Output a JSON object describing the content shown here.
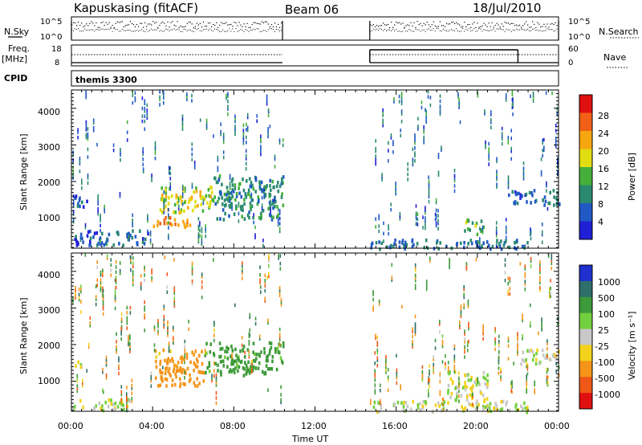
{
  "header": {
    "station": "Kapuskasing (fitACF)",
    "beam": "Beam 06",
    "date": "18/Jul/2010"
  },
  "panels": {
    "nsky": {
      "left_label": "N.Sky",
      "right_label": "N.Search",
      "left_ticks": [
        "10^5",
        "10^0"
      ],
      "right_ticks": [
        "10^5",
        "10^0"
      ]
    },
    "freq": {
      "left_label_1": "Freq.",
      "left_label_2": "[MHz]",
      "right_label": "Nave",
      "left_ticks": [
        "18",
        "8"
      ],
      "right_ticks": [
        "60",
        "0"
      ]
    },
    "cpid": {
      "label": "CPID",
      "value": "themis 3300"
    }
  },
  "axes": {
    "xlabel": "Time UT",
    "x_ticks": [
      "00:00",
      "04:00",
      "08:00",
      "12:00",
      "16:00",
      "20:00",
      "00:00"
    ],
    "ylabel": "Slant Range [km]",
    "y_ticks": [
      "1000",
      "2000",
      "3000",
      "4000"
    ]
  },
  "colorbars": {
    "power": {
      "label": "Power [dB]",
      "ticks": [
        "4",
        "8",
        "12",
        "16",
        "20",
        "24",
        "28"
      ],
      "colors": [
        "#1f1fd6",
        "#2159c4",
        "#2a8a70",
        "#44b03a",
        "#e0dd10",
        "#f6a60f",
        "#f26018",
        "#e01010"
      ]
    },
    "velocity": {
      "label": "Velocity [m s⁻¹]",
      "ticks": [
        "1000",
        "500",
        "100",
        "25",
        "-25",
        "-100",
        "-500",
        "-1000"
      ],
      "colors": [
        "#1f30cf",
        "#2e6f6a",
        "#3d9a3a",
        "#72cf3d",
        "#c8c8c8",
        "#f2d21a",
        "#f59419",
        "#f05818",
        "#e01010"
      ]
    }
  },
  "chart_data": [
    {
      "type": "heatmap",
      "title": "Power",
      "x_range_hours": [
        0,
        24
      ],
      "y_range_km": [
        180,
        4500
      ],
      "coverage_intervals_ut": [
        [
          0.0,
          10.4
        ],
        [
          14.7,
          24.0
        ]
      ],
      "notable_echo_regions": [
        {
          "time": [
            0.0,
            0.8
          ],
          "range_km": [
            1350,
            1700
          ],
          "power_db": 6
        },
        {
          "time": [
            0.0,
            3.8
          ],
          "range_km": [
            300,
            700
          ],
          "power_db": 6
        },
        {
          "time": [
            4.0,
            5.8
          ],
          "range_km": [
            800,
            1100
          ],
          "power_db": 24
        },
        {
          "time": [
            4.3,
            7.0
          ],
          "range_km": [
            1200,
            1900
          ],
          "power_db": 18
        },
        {
          "time": [
            7.0,
            10.4
          ],
          "range_km": [
            1000,
            2200
          ],
          "power_db": 10
        },
        {
          "time": [
            14.7,
            22.5
          ],
          "range_km": [
            200,
            450
          ],
          "power_db": 8
        },
        {
          "time": [
            19.3,
            20.3
          ],
          "range_km": [
            600,
            1000
          ],
          "power_db": 14
        },
        {
          "time": [
            21.5,
            24.0
          ],
          "range_km": [
            1400,
            1800
          ],
          "power_db": 7
        }
      ]
    },
    {
      "type": "heatmap",
      "title": "Velocity",
      "x_range_hours": [
        0,
        24
      ],
      "y_range_km": [
        180,
        4500
      ],
      "coverage_intervals_ut": [
        [
          0.0,
          10.4
        ],
        [
          14.7,
          24.0
        ]
      ],
      "notable_echo_regions": [
        {
          "time": [
            0.0,
            3.0
          ],
          "range_km": [
            250,
            550
          ],
          "velocity_ms": 0
        },
        {
          "time": [
            0.0,
            0.6
          ],
          "range_km": [
            1400,
            1600
          ],
          "velocity_ms": 0
        },
        {
          "time": [
            4.0,
            6.5
          ],
          "range_km": [
            900,
            1900
          ],
          "velocity_ms": -150
        },
        {
          "time": [
            6.5,
            10.4
          ],
          "range_km": [
            1200,
            2100
          ],
          "velocity_ms": 150
        },
        {
          "time": [
            14.7,
            22.5
          ],
          "range_km": [
            200,
            500
          ],
          "velocity_ms": 0
        },
        {
          "time": [
            18.5,
            20.5
          ],
          "range_km": [
            500,
            1300
          ],
          "velocity_ms": 0
        },
        {
          "time": [
            22.0,
            24.0
          ],
          "range_km": [
            1500,
            1900
          ],
          "velocity_ms": 0
        }
      ]
    }
  ]
}
